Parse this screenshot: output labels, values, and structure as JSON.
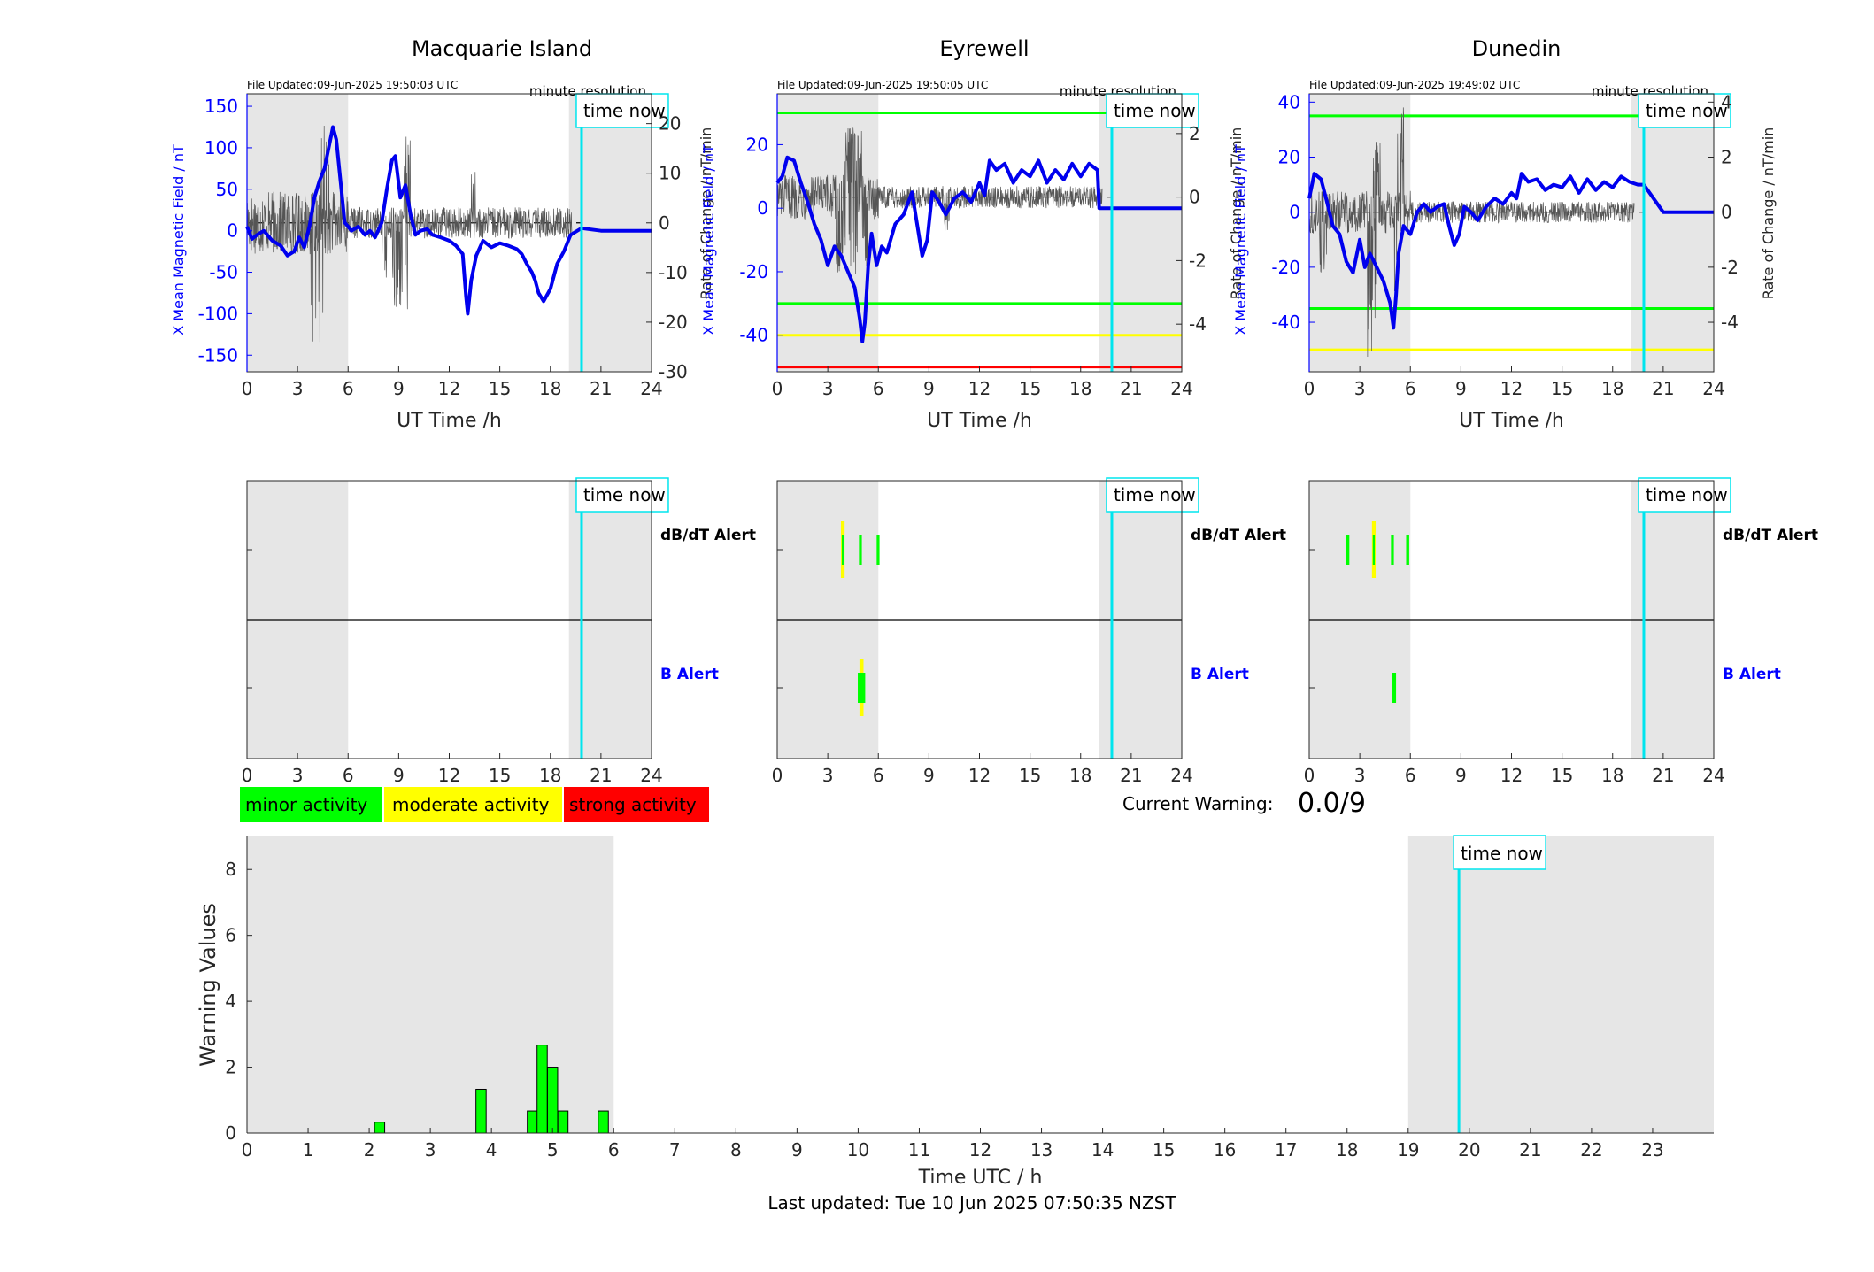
{
  "figure": {
    "footer": "Last updated: Tue 10 Jun 2025 07:50:35 NZST",
    "current_warning_label": "Current Warning:",
    "current_warning_value": "0.0/9",
    "time_now_label": "time now",
    "minute_resolution_label": "minute resolution"
  },
  "legend": {
    "items": [
      {
        "label": "minor activity",
        "color": "#00ff00"
      },
      {
        "label": "moderate activity",
        "color": "#ffff00"
      },
      {
        "label": "strong activity",
        "color": "#ff0000"
      }
    ]
  },
  "colors": {
    "field_line": "#0000ee",
    "rate_line": "#555555",
    "night_shade": "#e6e6e6",
    "time_now": "#00e5ee",
    "minor": "#00ff00",
    "moderate": "#ffff00",
    "strong": "#ff0000",
    "left_axis": "#0000ff"
  },
  "chart_data": [
    {
      "id": "macquarie",
      "type": "line",
      "title": "Macquarie Island",
      "file_updated": "File Updated:09-Jun-2025 19:50:03 UTC",
      "xlabel": "UT Time /h",
      "ylabel_left": "X Mean Magnetic Field / nT",
      "ylabel_right": "Rate of Change / nT/min",
      "xlim": [
        0,
        24
      ],
      "ylim_left": [
        -170,
        165
      ],
      "yticks_left": [
        -150,
        -100,
        -50,
        0,
        50,
        100,
        150
      ],
      "ylim_right": [
        -30,
        26
      ],
      "yticks_right": [
        -30,
        -20,
        -10,
        0,
        10,
        20
      ],
      "xticks": [
        0,
        3,
        6,
        9,
        12,
        15,
        18,
        21,
        24
      ],
      "night_bands": [
        [
          0,
          6
        ],
        [
          19.1,
          24
        ]
      ],
      "time_now": 19.85,
      "threshold_lines": [],
      "series": [
        {
          "axis": "left",
          "style": "thick",
          "x": [
            0,
            0.3,
            0.6,
            1,
            1.5,
            2,
            2.4,
            2.8,
            3.1,
            3.4,
            3.7,
            4,
            4.3,
            4.6,
            4.9,
            5.1,
            5.3,
            5.5,
            5.8,
            6.2,
            6.6,
            7,
            7.3,
            7.6,
            8,
            8.3,
            8.6,
            8.8,
            9.1,
            9.4,
            9.7,
            10,
            10.3,
            10.7,
            11,
            11.5,
            12,
            12.4,
            12.8,
            13,
            13.1,
            13.3,
            13.6,
            14,
            14.5,
            15,
            15.5,
            16,
            16.3,
            16.6,
            16.9,
            17.1,
            17.3,
            17.6,
            18,
            18.4,
            18.8,
            19.2,
            19.6,
            19.85,
            21,
            24
          ],
          "y": [
            5,
            -10,
            -5,
            0,
            -12,
            -18,
            -30,
            -25,
            -8,
            -20,
            5,
            40,
            60,
            75,
            105,
            125,
            110,
            70,
            10,
            0,
            5,
            -5,
            0,
            -8,
            10,
            50,
            85,
            90,
            40,
            55,
            20,
            -5,
            0,
            2,
            -5,
            -8,
            -12,
            -18,
            -28,
            -80,
            -100,
            -60,
            -30,
            -12,
            -20,
            -15,
            -18,
            -22,
            -28,
            -40,
            -50,
            -60,
            -75,
            -85,
            -70,
            -40,
            -25,
            -5,
            0,
            3,
            0,
            0
          ]
        },
        {
          "axis": "right",
          "style": "thin",
          "amp": 4.5,
          "events": [
            [
              3.8,
              4.6,
              -22
            ],
            [
              4.3,
              4.9,
              19
            ],
            [
              8.6,
              9.6,
              -16
            ],
            [
              9.3,
              9.7,
              17
            ],
            [
              8.0,
              8.4,
              -12
            ],
            [
              13.2,
              13.6,
              10
            ]
          ]
        }
      ]
    },
    {
      "id": "eyrewell",
      "type": "line",
      "title": "Eyrewell",
      "file_updated": "File Updated:09-Jun-2025 19:50:05 UTC",
      "xlabel": "UT Time /h",
      "ylabel_left": "X Mean Magnetic Field / nT",
      "ylabel_right": "Rate of Change / nT/min",
      "xlim": [
        0,
        24
      ],
      "ylim_left": [
        -51.5,
        36
      ],
      "yticks_left": [
        -40,
        -20,
        0,
        20
      ],
      "ylim_right": [
        -5.5,
        3.25
      ],
      "yticks_right": [
        -4,
        -2,
        0,
        2
      ],
      "xticks": [
        0,
        3,
        6,
        9,
        12,
        15,
        18,
        21,
        24
      ],
      "night_bands": [
        [
          0,
          6
        ],
        [
          19.1,
          24
        ]
      ],
      "time_now": 19.85,
      "threshold_lines": [
        {
          "value": 30,
          "color": "#00ff00"
        },
        {
          "value": -30,
          "color": "#00ff00"
        },
        {
          "value": -40,
          "color": "#ffff00"
        },
        {
          "value": -50,
          "color": "#ff0000"
        }
      ],
      "series": [
        {
          "axis": "left",
          "style": "thick",
          "x": [
            0,
            0.3,
            0.6,
            1,
            1.4,
            1.8,
            2.2,
            2.6,
            3,
            3.4,
            3.8,
            4.2,
            4.6,
            4.9,
            5.05,
            5.2,
            5.4,
            5.6,
            5.9,
            6.2,
            6.5,
            7,
            7.5,
            8,
            8.3,
            8.6,
            8.9,
            9.2,
            9.6,
            10,
            10.5,
            11,
            11.5,
            12,
            12.3,
            12.6,
            13,
            13.5,
            14,
            14.5,
            15,
            15.5,
            16,
            16.5,
            17,
            17.5,
            18,
            18.5,
            19,
            19.1,
            19.85,
            21,
            24
          ],
          "y": [
            8,
            10,
            16,
            15,
            8,
            2,
            -5,
            -10,
            -18,
            -12,
            -15,
            -20,
            -25,
            -35,
            -42,
            -36,
            -18,
            -8,
            -18,
            -12,
            -14,
            -5,
            -2,
            5,
            -5,
            -15,
            -10,
            5,
            2,
            -2,
            3,
            5,
            2,
            8,
            4,
            15,
            12,
            14,
            8,
            12,
            10,
            15,
            8,
            12,
            9,
            14,
            10,
            14,
            12,
            0,
            0,
            0,
            0
          ]
        },
        {
          "axis": "right",
          "style": "thin",
          "amp": 0.5,
          "events": [
            [
              3.5,
              4.8,
              -2.2
            ],
            [
              4.0,
              5.0,
              2.0
            ],
            [
              5.0,
              5.4,
              -2.0
            ],
            [
              9.8,
              10.2,
              -1.2
            ]
          ]
        }
      ]
    },
    {
      "id": "dunedin",
      "type": "line",
      "title": "Dunedin",
      "file_updated": "File Updated:09-Jun-2025 19:49:02 UTC",
      "xlabel": "UT Time /h",
      "ylabel_left": "X Mean Magnetic Field / nT",
      "ylabel_right": "Rate of Change / nT/min",
      "xlim": [
        0,
        24
      ],
      "ylim_left": [
        -58,
        43
      ],
      "yticks_left": [
        -40,
        -20,
        0,
        20,
        40
      ],
      "ylim_right": [
        -5.8,
        4.3
      ],
      "yticks_right": [
        -4,
        -2,
        0,
        2,
        4
      ],
      "xticks": [
        0,
        3,
        6,
        9,
        12,
        15,
        18,
        21,
        24
      ],
      "night_bands": [
        [
          0,
          6
        ],
        [
          19.1,
          24
        ]
      ],
      "time_now": 19.85,
      "threshold_lines": [
        {
          "value": 35,
          "color": "#00ff00"
        },
        {
          "value": -35,
          "color": "#00ff00"
        },
        {
          "value": -50,
          "color": "#ffff00"
        }
      ],
      "series": [
        {
          "axis": "left",
          "style": "thick",
          "x": [
            0,
            0.3,
            0.7,
            1,
            1.4,
            1.8,
            2.2,
            2.6,
            3,
            3.3,
            3.6,
            4,
            4.4,
            4.8,
            5.0,
            5.15,
            5.3,
            5.6,
            6,
            6.4,
            6.8,
            7.2,
            7.6,
            8,
            8.3,
            8.6,
            8.9,
            9.2,
            9.6,
            10,
            10.5,
            11,
            11.5,
            12,
            12.3,
            12.6,
            13,
            13.5,
            14,
            14.5,
            15,
            15.5,
            16,
            16.5,
            17,
            17.5,
            18,
            18.5,
            19,
            19.5,
            19.85,
            21,
            24
          ],
          "y": [
            5,
            14,
            12,
            5,
            -5,
            -8,
            -18,
            -22,
            -10,
            -20,
            -15,
            -20,
            -25,
            -33,
            -42,
            -30,
            -15,
            -5,
            -8,
            0,
            3,
            0,
            2,
            3,
            -5,
            -12,
            -8,
            2,
            0,
            -3,
            2,
            5,
            3,
            7,
            5,
            14,
            11,
            12,
            8,
            10,
            9,
            13,
            7,
            12,
            8,
            11,
            9,
            13,
            11,
            10,
            10,
            0,
            0
          ]
        },
        {
          "axis": "right",
          "style": "thin",
          "amp": 0.55,
          "events": [
            [
              0.6,
              1.1,
              -2.0
            ],
            [
              3.4,
              4.0,
              -5.0
            ],
            [
              3.8,
              4.2,
              2.5
            ],
            [
              5.2,
              5.6,
              3.5
            ],
            [
              5.0,
              5.3,
              -2.8
            ]
          ]
        }
      ]
    },
    {
      "id": "macquarie-alerts",
      "type": "bar",
      "xlim": [
        0,
        24
      ],
      "xticks": [
        0,
        3,
        6,
        9,
        12,
        15,
        18,
        21,
        24
      ],
      "night_bands": [
        [
          0,
          6
        ],
        [
          19.1,
          24
        ]
      ],
      "time_now": 19.85,
      "row_labels": [
        "dBdT",
        "B"
      ],
      "dbdt_alert_label": "dB/dT Alert",
      "b_alert_label": "B Alert",
      "alerts": []
    },
    {
      "id": "eyrewell-alerts",
      "type": "bar",
      "xlim": [
        0,
        24
      ],
      "xticks": [
        0,
        3,
        6,
        9,
        12,
        15,
        18,
        21,
        24
      ],
      "night_bands": [
        [
          0,
          6
        ],
        [
          19.1,
          24
        ]
      ],
      "time_now": 19.85,
      "dbdt_alert_label": "dB/dT Alert",
      "b_alert_label": "B Alert",
      "alerts": [
        {
          "row": "dBdT",
          "start": 3.78,
          "end": 4.0,
          "level": "moderate"
        },
        {
          "row": "dBdT",
          "start": 3.83,
          "end": 3.95,
          "level": "minor"
        },
        {
          "row": "dBdT",
          "start": 4.85,
          "end": 5.02,
          "level": "minor"
        },
        {
          "row": "dBdT",
          "start": 5.9,
          "end": 6.07,
          "level": "minor"
        },
        {
          "row": "B",
          "start": 4.88,
          "end": 5.12,
          "level": "moderate"
        },
        {
          "row": "B",
          "start": 4.78,
          "end": 5.22,
          "level": "minor"
        }
      ]
    },
    {
      "id": "dunedin-alerts",
      "type": "bar",
      "xlim": [
        0,
        24
      ],
      "xticks": [
        0,
        3,
        6,
        9,
        12,
        15,
        18,
        21,
        24
      ],
      "night_bands": [
        [
          0,
          6
        ],
        [
          19.1,
          24
        ]
      ],
      "time_now": 19.85,
      "dbdt_alert_label": "dB/dT Alert",
      "b_alert_label": "B Alert",
      "alerts": [
        {
          "row": "dBdT",
          "start": 2.2,
          "end": 2.38,
          "level": "minor"
        },
        {
          "row": "dBdT",
          "start": 3.72,
          "end": 3.94,
          "level": "moderate"
        },
        {
          "row": "dBdT",
          "start": 3.77,
          "end": 3.89,
          "level": "minor"
        },
        {
          "row": "dBdT",
          "start": 4.85,
          "end": 5.02,
          "level": "minor"
        },
        {
          "row": "dBdT",
          "start": 5.75,
          "end": 5.93,
          "level": "minor"
        },
        {
          "row": "B",
          "start": 4.92,
          "end": 5.15,
          "level": "minor"
        }
      ]
    },
    {
      "id": "warning-values",
      "type": "bar",
      "xlabel": "Time UTC / h",
      "ylabel": "Warning Values",
      "xlim": [
        0,
        24
      ],
      "ylim": [
        0,
        9
      ],
      "xticks": [
        0,
        1,
        2,
        3,
        4,
        5,
        6,
        7,
        8,
        9,
        10,
        11,
        12,
        13,
        14,
        15,
        16,
        17,
        18,
        19,
        20,
        21,
        22,
        23
      ],
      "yticks": [
        0,
        2,
        4,
        6,
        8
      ],
      "night_bands": [
        [
          0,
          6
        ],
        [
          19,
          24
        ]
      ],
      "time_now": 19.83,
      "bars": [
        {
          "x": 2.17,
          "value": 0.33
        },
        {
          "x": 3.83,
          "value": 1.33
        },
        {
          "x": 4.67,
          "value": 0.67
        },
        {
          "x": 4.83,
          "value": 2.67
        },
        {
          "x": 5.0,
          "value": 2.0
        },
        {
          "x": 5.17,
          "value": 0.67
        },
        {
          "x": 5.83,
          "value": 0.67
        }
      ],
      "bar_width": 0.1667
    }
  ]
}
